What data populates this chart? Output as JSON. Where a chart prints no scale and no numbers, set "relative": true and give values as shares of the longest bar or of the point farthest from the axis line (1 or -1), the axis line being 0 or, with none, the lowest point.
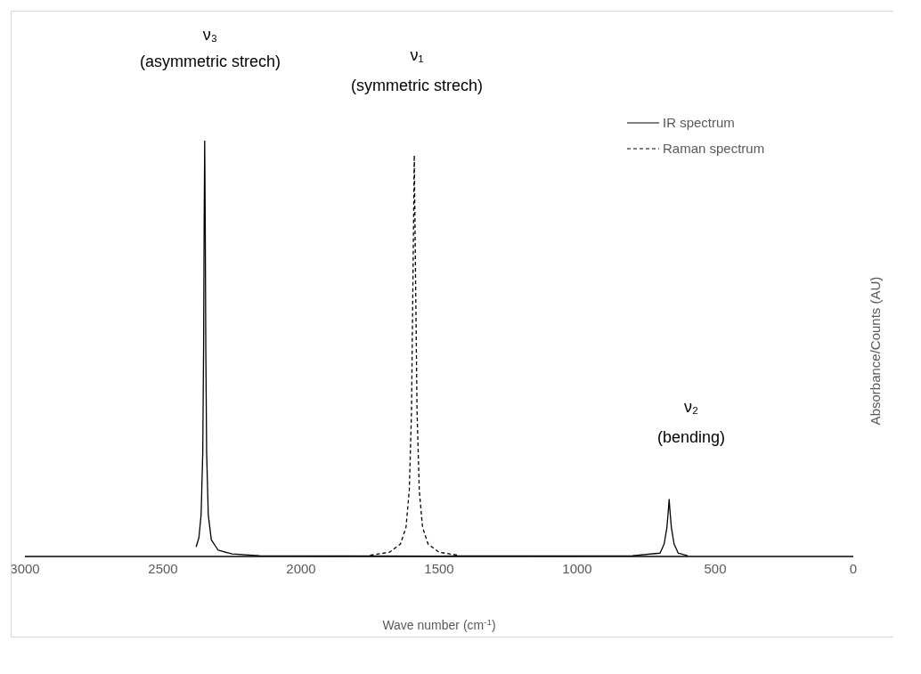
{
  "chart_data": {
    "type": "line",
    "xlabel": "Wave number (cm$^{-1}$)",
    "ylabel": "Absorbance/Counts (AU)",
    "relative": true,
    "xlim": [
      3000,
      0
    ],
    "xticks": [
      3000,
      2500,
      2000,
      1500,
      1000,
      500,
      0
    ],
    "tick_labels": "x",
    "legend": "top right",
    "marker": "none",
    "series": [
      {
        "name": "IR spectrum",
        "color": "#000000",
        "line_style": "solid",
        "x": [
          2380,
          2370,
          2362,
          2356,
          2353,
          2351,
          2349,
          2347,
          2345,
          2342,
          2336,
          2325,
          2300,
          2250,
          2150,
          1500,
          800,
          700,
          685,
          675,
          670,
          667,
          664,
          659,
          649,
          634,
          600
        ],
        "values": [
          0.023,
          0.045,
          0.1,
          0.25,
          0.5,
          0.8,
          1,
          0.8,
          0.5,
          0.25,
          0.1,
          0.04,
          0.015,
          0.006,
          0.002,
          0.001,
          0.002,
          0.008,
          0.03,
          0.07,
          0.11,
          0.137,
          0.11,
          0.07,
          0.03,
          0.008,
          0.002
        ]
      },
      {
        "name": "Raman spectrum",
        "color": "#000000",
        "line_style": "dashed",
        "x": [
          1750,
          1680,
          1640,
          1620,
          1608,
          1600,
          1595,
          1590,
          1585,
          1580,
          1572,
          1560,
          1540,
          1500,
          1430
        ],
        "values": [
          0.003,
          0.01,
          0.03,
          0.07,
          0.16,
          0.35,
          0.65,
          0.965,
          0.65,
          0.35,
          0.16,
          0.07,
          0.03,
          0.01,
          0.003
        ]
      }
    ],
    "annotations": [
      "ν₃",
      "(asymmetric strech)",
      "ν₁",
      "(symmetric strech)",
      "ν₂",
      "(bending)"
    ]
  }
}
